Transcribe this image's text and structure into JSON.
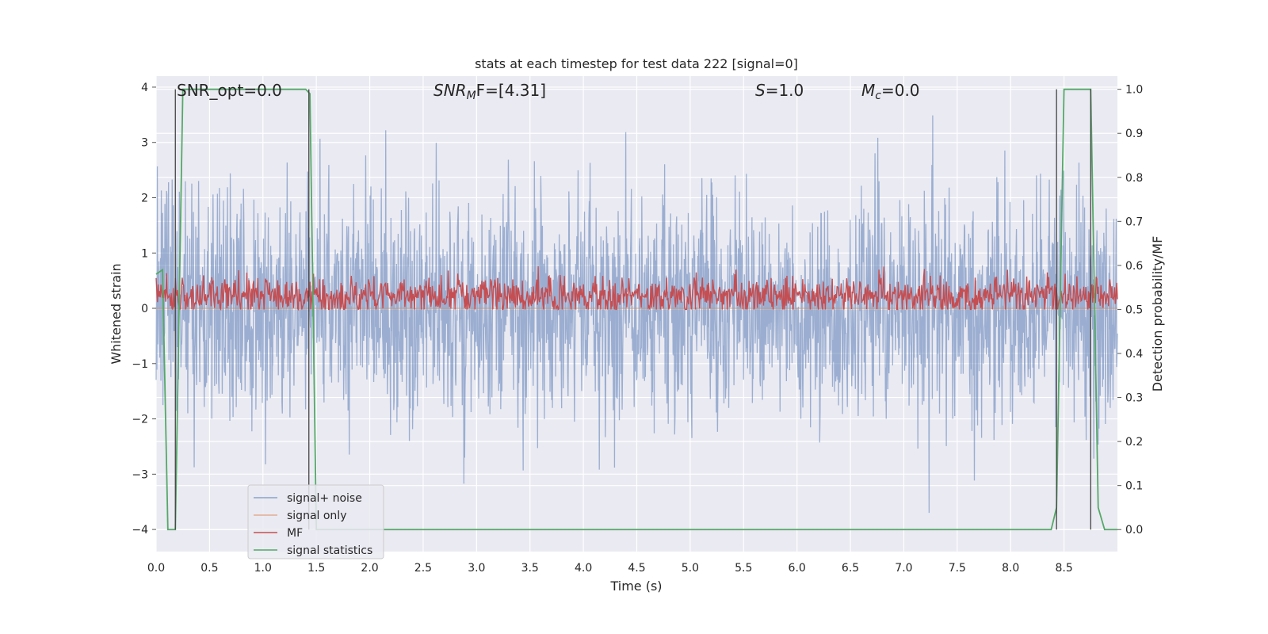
{
  "chart_data": {
    "type": "line",
    "title": "stats at each timestep for test data 222 [signal=0]",
    "xlabel": "Time (s)",
    "ylabel": "Whitened strain",
    "y2label": "Detection probability/MF",
    "xlim": [
      0.0,
      9.0
    ],
    "ylim": [
      -4.4,
      4.2
    ],
    "y2lim": [
      -0.05,
      1.03
    ],
    "grid": true,
    "legend_position": "lower-left",
    "x_ticks": [
      "0.0",
      "0.5",
      "1.0",
      "1.5",
      "2.0",
      "2.5",
      "3.0",
      "3.5",
      "4.0",
      "4.5",
      "5.0",
      "5.5",
      "6.0",
      "6.5",
      "7.0",
      "7.5",
      "8.0",
      "8.5"
    ],
    "y_ticks": [
      "4",
      "3",
      "2",
      "1",
      "0",
      "−1",
      "−2",
      "−3",
      "−4"
    ],
    "y2_ticks": [
      "1.0",
      "0.9",
      "0.8",
      "0.7",
      "0.6",
      "0.5",
      "0.4",
      "0.3",
      "0.2",
      "0.1",
      "0.0"
    ],
    "annotations": {
      "snr_opt": "SNR_opt=0.0",
      "snr_mf_main": "SNR",
      "snr_mf_sub": "M",
      "snr_mf_rest": "F=[4.31]",
      "s_main": "S",
      "s_rest": "=1.0",
      "mc_main": "M",
      "mc_sub": "c",
      "mc_rest": "=0.0"
    },
    "series": [
      {
        "name": "signal+ noise",
        "color": "#4c72b0",
        "axis": "left",
        "description_values": {
          "mean": 0.0,
          "std": 1.0,
          "typical_max": 3.5,
          "typical_min": -3.5
        }
      },
      {
        "name": "signal only",
        "color": "#dd8452",
        "axis": "left",
        "values": "all zero"
      },
      {
        "name": "MF",
        "color": "#c44e52",
        "axis": "right",
        "description_values": {
          "mean": 0.53,
          "min": 0.5,
          "max": 0.62
        }
      },
      {
        "name": "signal statistics",
        "color": "#55a868",
        "axis": "right",
        "points": [
          [
            0.0,
            0.58
          ],
          [
            0.06,
            0.59
          ],
          [
            0.11,
            0.0
          ],
          [
            0.18,
            0.0
          ],
          [
            0.25,
            1.0
          ],
          [
            0.3,
            1.0
          ],
          [
            1.4,
            1.0
          ],
          [
            1.44,
            0.99
          ],
          [
            1.5,
            0.0
          ],
          [
            8.38,
            0.0
          ],
          [
            8.43,
            0.05
          ],
          [
            8.5,
            1.0
          ],
          [
            8.75,
            1.0
          ],
          [
            8.82,
            0.05
          ],
          [
            8.88,
            0.0
          ],
          [
            9.0,
            0.0
          ]
        ]
      }
    ],
    "vertical_markers": [
      0.18,
      1.43,
      8.43,
      8.75
    ]
  }
}
